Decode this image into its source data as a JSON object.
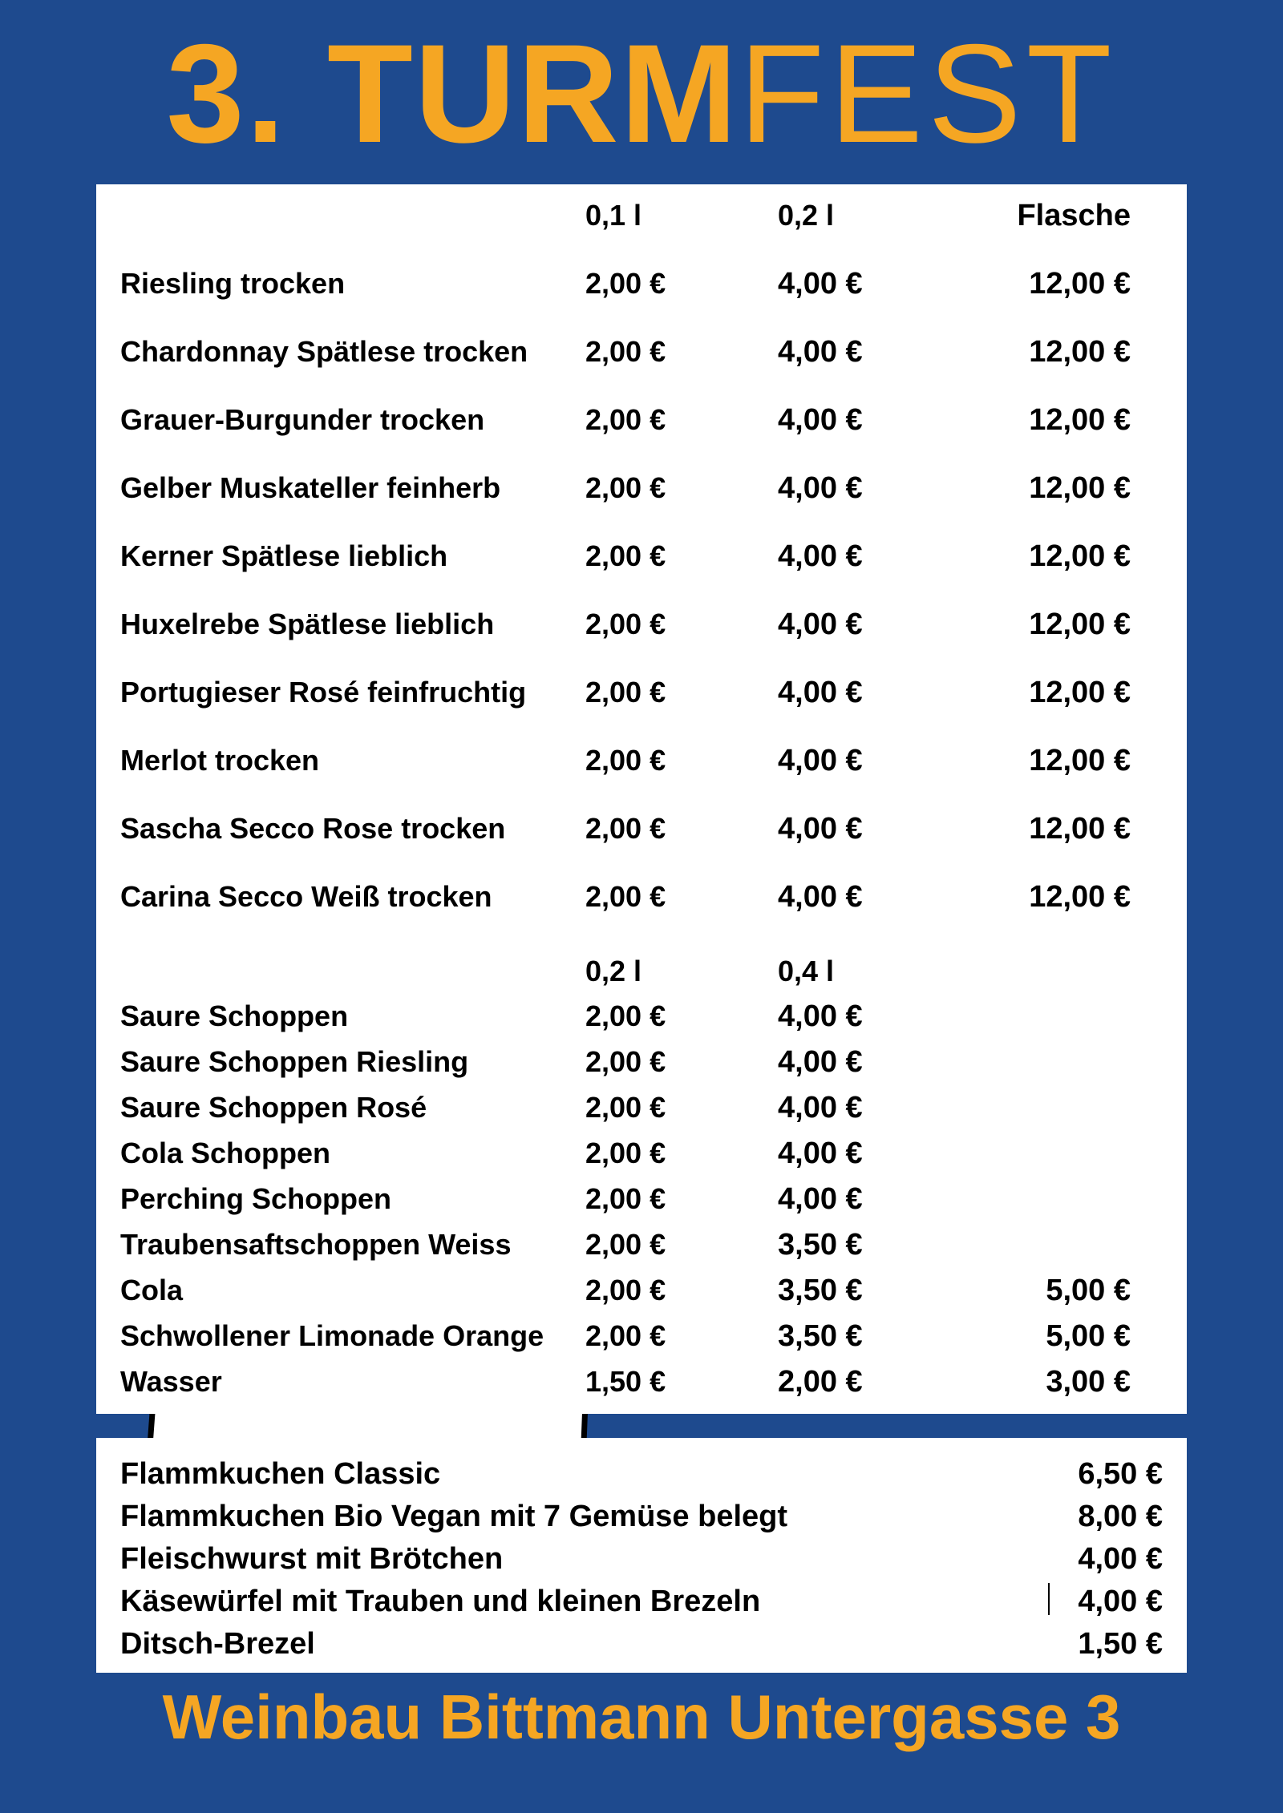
{
  "colors": {
    "background": "#1e4a8e",
    "accent": "#f5a623",
    "panel": "#ffffff",
    "text": "#000000",
    "tower_stroke": "#000000",
    "tower_fill": "#ffffff"
  },
  "title": {
    "bold": "3. TURM",
    "light": "FEST"
  },
  "wine_headers": {
    "p1": "0,1 l",
    "p2": "0,2 l",
    "p3": "Flasche"
  },
  "wines": [
    {
      "name": "Riesling trocken",
      "p1": "2,00 €",
      "p2": "4,00 €",
      "p3": "12,00 €"
    },
    {
      "name": "Chardonnay Spätlese trocken",
      "p1": "2,00 €",
      "p2": "4,00 €",
      "p3": "12,00 €"
    },
    {
      "name": "Grauer-Burgunder trocken",
      "p1": "2,00 €",
      "p2": "4,00 €",
      "p3": "12,00 €"
    },
    {
      "name": "Gelber Muskateller feinherb",
      "p1": "2,00 €",
      "p2": "4,00 €",
      "p3": "12,00 €"
    },
    {
      "name": "Kerner Spätlese lieblich",
      "p1": "2,00 €",
      "p2": "4,00 €",
      "p3": "12,00 €"
    },
    {
      "name": "Huxelrebe Spätlese lieblich",
      "p1": "2,00 €",
      "p2": "4,00 €",
      "p3": "12,00 €"
    },
    {
      "name": "Portugieser Rosé feinfruchtig",
      "p1": "2,00 €",
      "p2": "4,00 €",
      "p3": "12,00 €"
    },
    {
      "name": "Merlot  trocken",
      "p1": "2,00 €",
      "p2": "4,00 €",
      "p3": "12,00 €"
    },
    {
      "name": "Sascha Secco Rose trocken",
      "p1": "2,00 €",
      "p2": "4,00 €",
      "p3": "12,00 €"
    },
    {
      "name": "Carina Secco Weiß trocken",
      "p1": "2,00 €",
      "p2": "4,00 €",
      "p3": "12,00 €"
    }
  ],
  "bev_headers": {
    "p1": "0,2 l",
    "p2": "0,4 l",
    "p3": ""
  },
  "beverages": [
    {
      "name": "Saure  Schoppen",
      "p1": "2,00 €",
      "p2": "4,00 €",
      "p3": ""
    },
    {
      "name": "Saure Schoppen Riesling",
      "p1": "2,00 €",
      "p2": "4,00 €",
      "p3": ""
    },
    {
      "name": "Saure Schoppen Rosé",
      "p1": "2,00 €",
      "p2": "4,00 €",
      "p3": ""
    },
    {
      "name": "Cola Schoppen",
      "p1": "2,00 €",
      "p2": "4,00 €",
      "p3": ""
    },
    {
      "name": "Perching Schoppen",
      "p1": "2,00 €",
      "p2": "4,00 €",
      "p3": ""
    },
    {
      "name": "Traubensaftschoppen Weiss",
      "p1": "2,00 €",
      "p2": "3,50 €",
      "p3": ""
    },
    {
      "name": "Cola",
      "p1": "2,00 €",
      "p2": "3,50 €",
      "p3": "5,00 €"
    },
    {
      "name": "Schwollener Limonade Orange",
      "p1": "2,00 €",
      "p2": "3,50 €",
      "p3": "5,00 €"
    },
    {
      "name": "Wasser",
      "p1": "1,50 €",
      "p2": "2,00 €",
      "p3": "3,00 €"
    }
  ],
  "foods": [
    {
      "name": "Flammkuchen Classic",
      "price": "6,50 €"
    },
    {
      "name": "Flammkuchen Bio Vegan mit 7 Gemüse belegt",
      "price": "8,00 €"
    },
    {
      "name": "Fleischwurst mit Brötchen",
      "price": "4,00 €"
    },
    {
      "name": "Käsewürfel mit Trauben und kleinen Brezeln",
      "price": "4,00 €"
    },
    {
      "name": "Ditsch-Brezel",
      "price": "1,50 €"
    }
  ],
  "footer": "Weinbau Bittmann Untergasse 3"
}
